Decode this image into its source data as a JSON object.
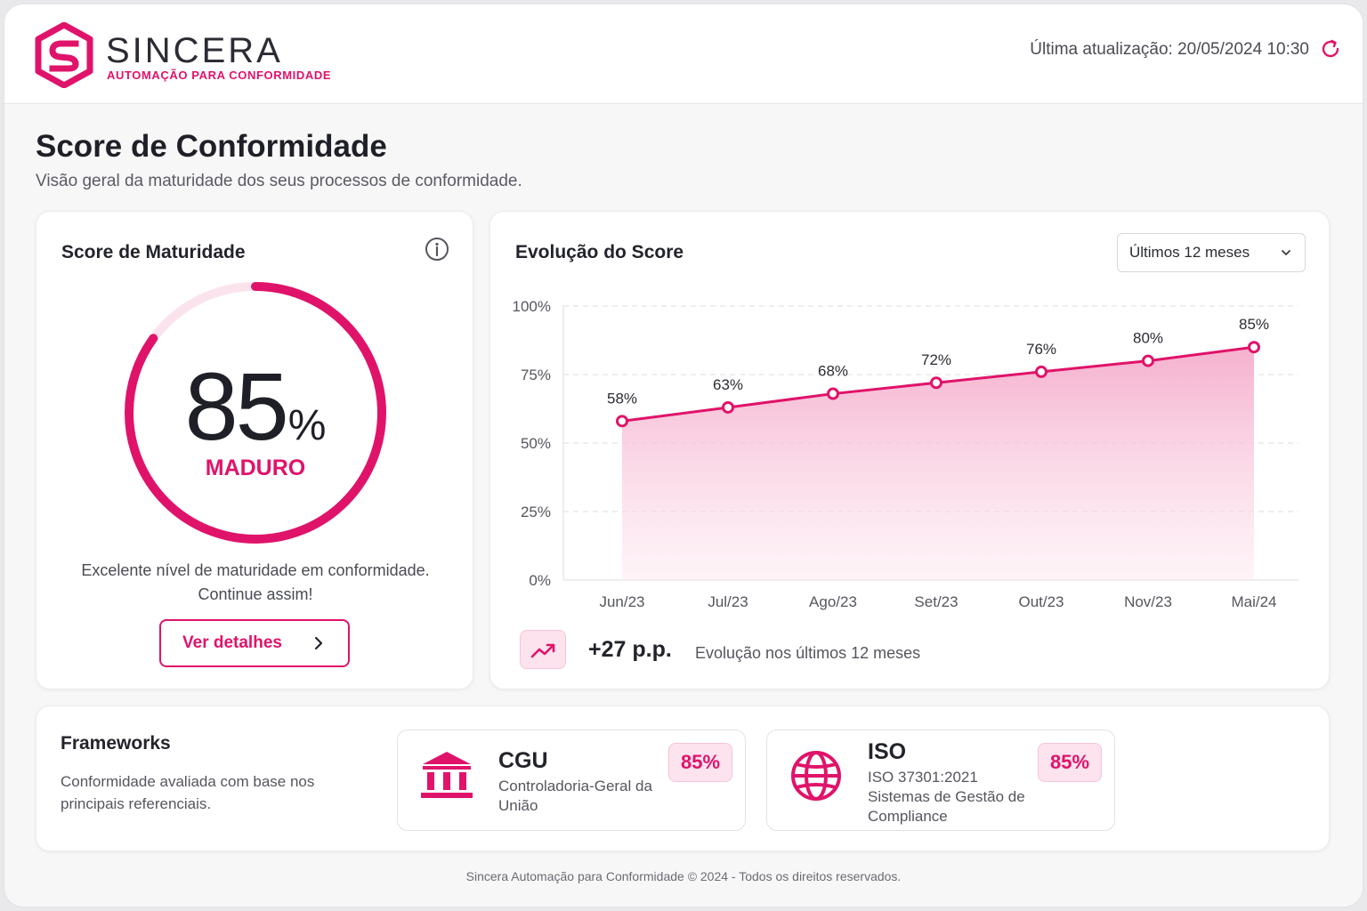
{
  "brand": {
    "name": "SINCERA",
    "tagline": "AUTOMAÇÃO PARA CONFORMIDADE",
    "accent": "#e0136a"
  },
  "header": {
    "last_update": "Última atualização: 20/05/2024 10:30",
    "refresh_icon": "refresh-icon"
  },
  "page": {
    "title": "Score de Conformidade",
    "subtitle": "Visão geral da maturidade dos seus processos de conformidade."
  },
  "score_card": {
    "title": "Score de Maturidade",
    "value": "85",
    "unit": "%",
    "progress": 0.85,
    "level": "MADURO",
    "description_line1": "Excelente nível de maturidade em conformidade.",
    "description_line2": "Continue assim!",
    "details_button": "Ver detalhes"
  },
  "chart_card": {
    "title": "Evolução do Score",
    "period_selected": "Últimos 12 meses",
    "trend_value": "+27 p.p.",
    "trend_label": "Evolução nos últimos 12 meses"
  },
  "chart_data": {
    "type": "area",
    "categories": [
      "Jun/23",
      "Jul/23",
      "Ago/23",
      "Set/23",
      "Out/23",
      "Nov/23",
      "Mai/24"
    ],
    "values": [
      58,
      63,
      68,
      72,
      76,
      80,
      85
    ],
    "data_labels": [
      "58%",
      "63%",
      "68%",
      "72%",
      "76%",
      "80%",
      "85%"
    ],
    "ylim": [
      0,
      100
    ],
    "yticks": [
      0,
      25,
      50,
      75,
      100
    ],
    "ytick_labels": [
      "0%",
      "25%",
      "50%",
      "75%",
      "100%"
    ],
    "grid": true,
    "color": "#e0136a"
  },
  "frameworks": {
    "title": "Frameworks",
    "description": "Conformidade avaliada com base nos principais referenciais.",
    "items": [
      {
        "name": "CGU",
        "description": "Controladoria-Geral da União",
        "score": "85%",
        "icon": "bank-icon"
      },
      {
        "name": "ISO",
        "description_line1": "ISO 37301:2021",
        "description_line2": "Sistemas de Gestão de Compliance",
        "score": "85%",
        "icon": "globe-icon"
      }
    ]
  },
  "footer": {
    "text": "Sincera Automação para Conformidade © 2024 - Todos os direitos reservados."
  }
}
